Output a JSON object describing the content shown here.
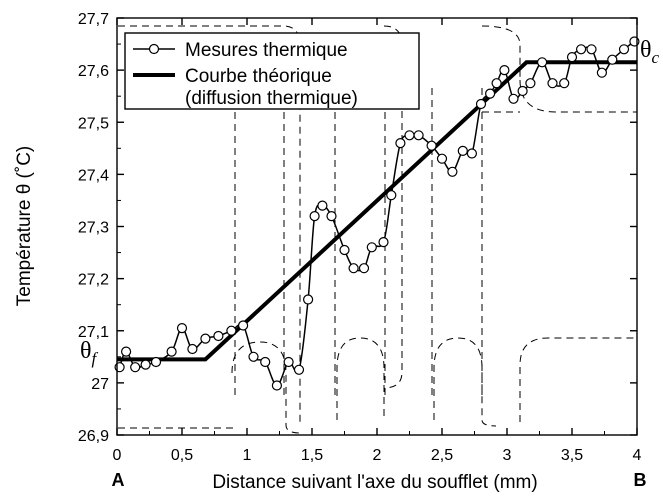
{
  "chart_data": {
    "type": "line",
    "xlabel": "Distance suivant l'axe du soufflet (mm)",
    "ylabel": "Température θ (˚C)",
    "xlim": [
      0,
      4
    ],
    "ylim": [
      26.9,
      27.7
    ],
    "xticks": [
      0,
      0.5,
      1,
      1.5,
      2,
      2.5,
      3,
      3.5,
      4
    ],
    "xtick_labels": [
      "0",
      "0,5",
      "1",
      "1,5",
      "2",
      "2,5",
      "3",
      "3,5",
      "4"
    ],
    "yticks": [
      26.9,
      27,
      27.1,
      27.2,
      27.3,
      27.4,
      27.5,
      27.6,
      27.7
    ],
    "ytick_labels": [
      "26,9",
      "27",
      "27,1",
      "27,2",
      "27,3",
      "27,4",
      "27,5",
      "27,6",
      "27,7"
    ],
    "grid": false,
    "legend_position": "top-left",
    "annotations": {
      "left_end_label": "A",
      "right_end_label": "B",
      "theta_f": "θf",
      "theta_c": "θc"
    },
    "series": [
      {
        "name": "Mesures thermique",
        "style": "line-with-open-circles",
        "color": "#000000",
        "x": [
          0.02,
          0.07,
          0.14,
          0.22,
          0.3,
          0.42,
          0.5,
          0.58,
          0.68,
          0.78,
          0.88,
          0.97,
          1.05,
          1.14,
          1.23,
          1.32,
          1.4,
          1.47,
          1.52,
          1.58,
          1.65,
          1.75,
          1.82,
          1.9,
          1.96,
          2.05,
          2.11,
          2.18,
          2.25,
          2.32,
          2.42,
          2.5,
          2.58,
          2.66,
          2.73,
          2.8,
          2.87,
          2.92,
          2.98,
          3.05,
          3.12,
          3.18,
          3.27,
          3.35,
          3.44,
          3.5,
          3.57,
          3.65,
          3.73,
          3.81,
          3.9,
          3.98
        ],
        "y": [
          27.03,
          27.06,
          27.03,
          27.035,
          27.04,
          27.06,
          27.105,
          27.065,
          27.085,
          27.09,
          27.1,
          27.11,
          27.05,
          27.04,
          26.995,
          27.04,
          27.025,
          27.16,
          27.32,
          27.34,
          27.32,
          27.255,
          27.22,
          27.22,
          27.26,
          27.27,
          27.36,
          27.46,
          27.475,
          27.475,
          27.455,
          27.43,
          27.405,
          27.445,
          27.44,
          27.535,
          27.555,
          27.575,
          27.6,
          27.545,
          27.56,
          27.575,
          27.615,
          27.575,
          27.575,
          27.625,
          27.64,
          27.64,
          27.595,
          27.62,
          27.64,
          27.655
        ]
      },
      {
        "name": "Courbe théorique",
        "name_line2": "(diffusion thermique)",
        "style": "thick-line",
        "color": "#000000",
        "x": [
          0,
          0.68,
          3.15,
          4
        ],
        "y": [
          27.045,
          27.045,
          27.615,
          27.615
        ]
      }
    ]
  }
}
